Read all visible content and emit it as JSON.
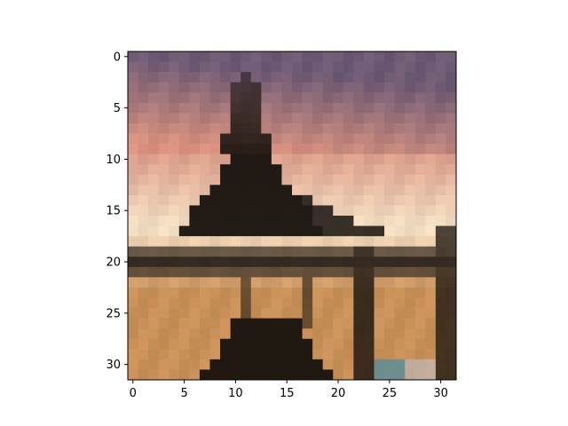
{
  "chart_data": {
    "type": "heatmap",
    "title": "",
    "xlabel": "",
    "ylabel": "",
    "xlim": [
      -0.5,
      31.5
    ],
    "ylim": [
      31.5,
      -0.5
    ],
    "grid": false,
    "image_shape": [
      32,
      32
    ],
    "xticks": [
      0,
      5,
      10,
      15,
      20,
      25,
      30
    ],
    "yticks": [
      0,
      5,
      10,
      15,
      20,
      25,
      30
    ],
    "xtick_labels": [
      "0",
      "5",
      "10",
      "15",
      "20",
      "25",
      "30"
    ],
    "ytick_labels": [
      "0",
      "5",
      "10",
      "15",
      "20",
      "25",
      "30"
    ],
    "sky_top_color": "#6e5a74",
    "sky_mid_color": "#d8917f",
    "horizon_color": "#f1dcc0",
    "ground_color": "#c89058",
    "silhouette_color": "#17120d"
  }
}
